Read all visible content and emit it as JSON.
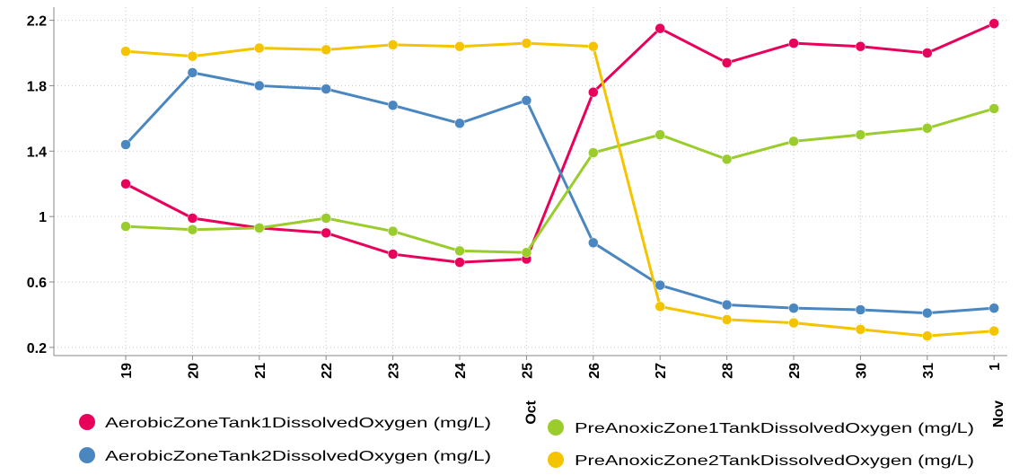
{
  "chart_data": {
    "type": "line",
    "title": "",
    "xlabel": "",
    "ylabel": "",
    "x": [
      "19",
      "20",
      "21",
      "22",
      "23",
      "24",
      "25",
      "26",
      "27",
      "28",
      "29",
      "30",
      "31",
      "1"
    ],
    "month_labels": [
      {
        "after_index": 6,
        "text": "Oct"
      },
      {
        "after_index": 13,
        "text": "Nov"
      }
    ],
    "ylim": [
      0.15,
      2.28
    ],
    "yticks": [
      0.2,
      0.6,
      1,
      1.4,
      1.8,
      2.2
    ],
    "ytick_labels": [
      "0.2",
      "0.6",
      "1",
      "1.4",
      "1.8",
      "2.2"
    ],
    "grid": "horizontal and vertical dotted",
    "legend_position": "bottom",
    "series": [
      {
        "name": "AerobicZoneTank1DissolvedOxygen (mg/L)",
        "color": "#e8005b",
        "values": [
          1.2,
          0.99,
          0.93,
          0.9,
          0.77,
          0.72,
          0.74,
          1.76,
          2.15,
          1.94,
          2.06,
          2.04,
          2.0,
          2.18
        ]
      },
      {
        "name": "AerobicZoneTank2DissolvedOxygen (mg/L)",
        "color": "#4a86c0",
        "values": [
          1.44,
          1.88,
          1.8,
          1.78,
          1.68,
          1.57,
          1.71,
          0.84,
          0.58,
          0.46,
          0.44,
          0.43,
          0.41,
          0.44
        ]
      },
      {
        "name": "PreAnoxicZone1TankDissolvedOxygen (mg/L)",
        "color": "#9acc2c",
        "values": [
          0.94,
          0.92,
          0.93,
          0.99,
          0.91,
          0.79,
          0.78,
          1.39,
          1.5,
          1.35,
          1.46,
          1.5,
          1.54,
          1.66
        ]
      },
      {
        "name": "PreAnoxicZone2TankDissolvedOxygen (mg/L)",
        "color": "#f5c400",
        "values": [
          2.01,
          1.98,
          2.03,
          2.02,
          2.05,
          2.04,
          2.06,
          2.04,
          0.45,
          0.37,
          0.35,
          0.31,
          0.27,
          0.3
        ]
      }
    ]
  }
}
